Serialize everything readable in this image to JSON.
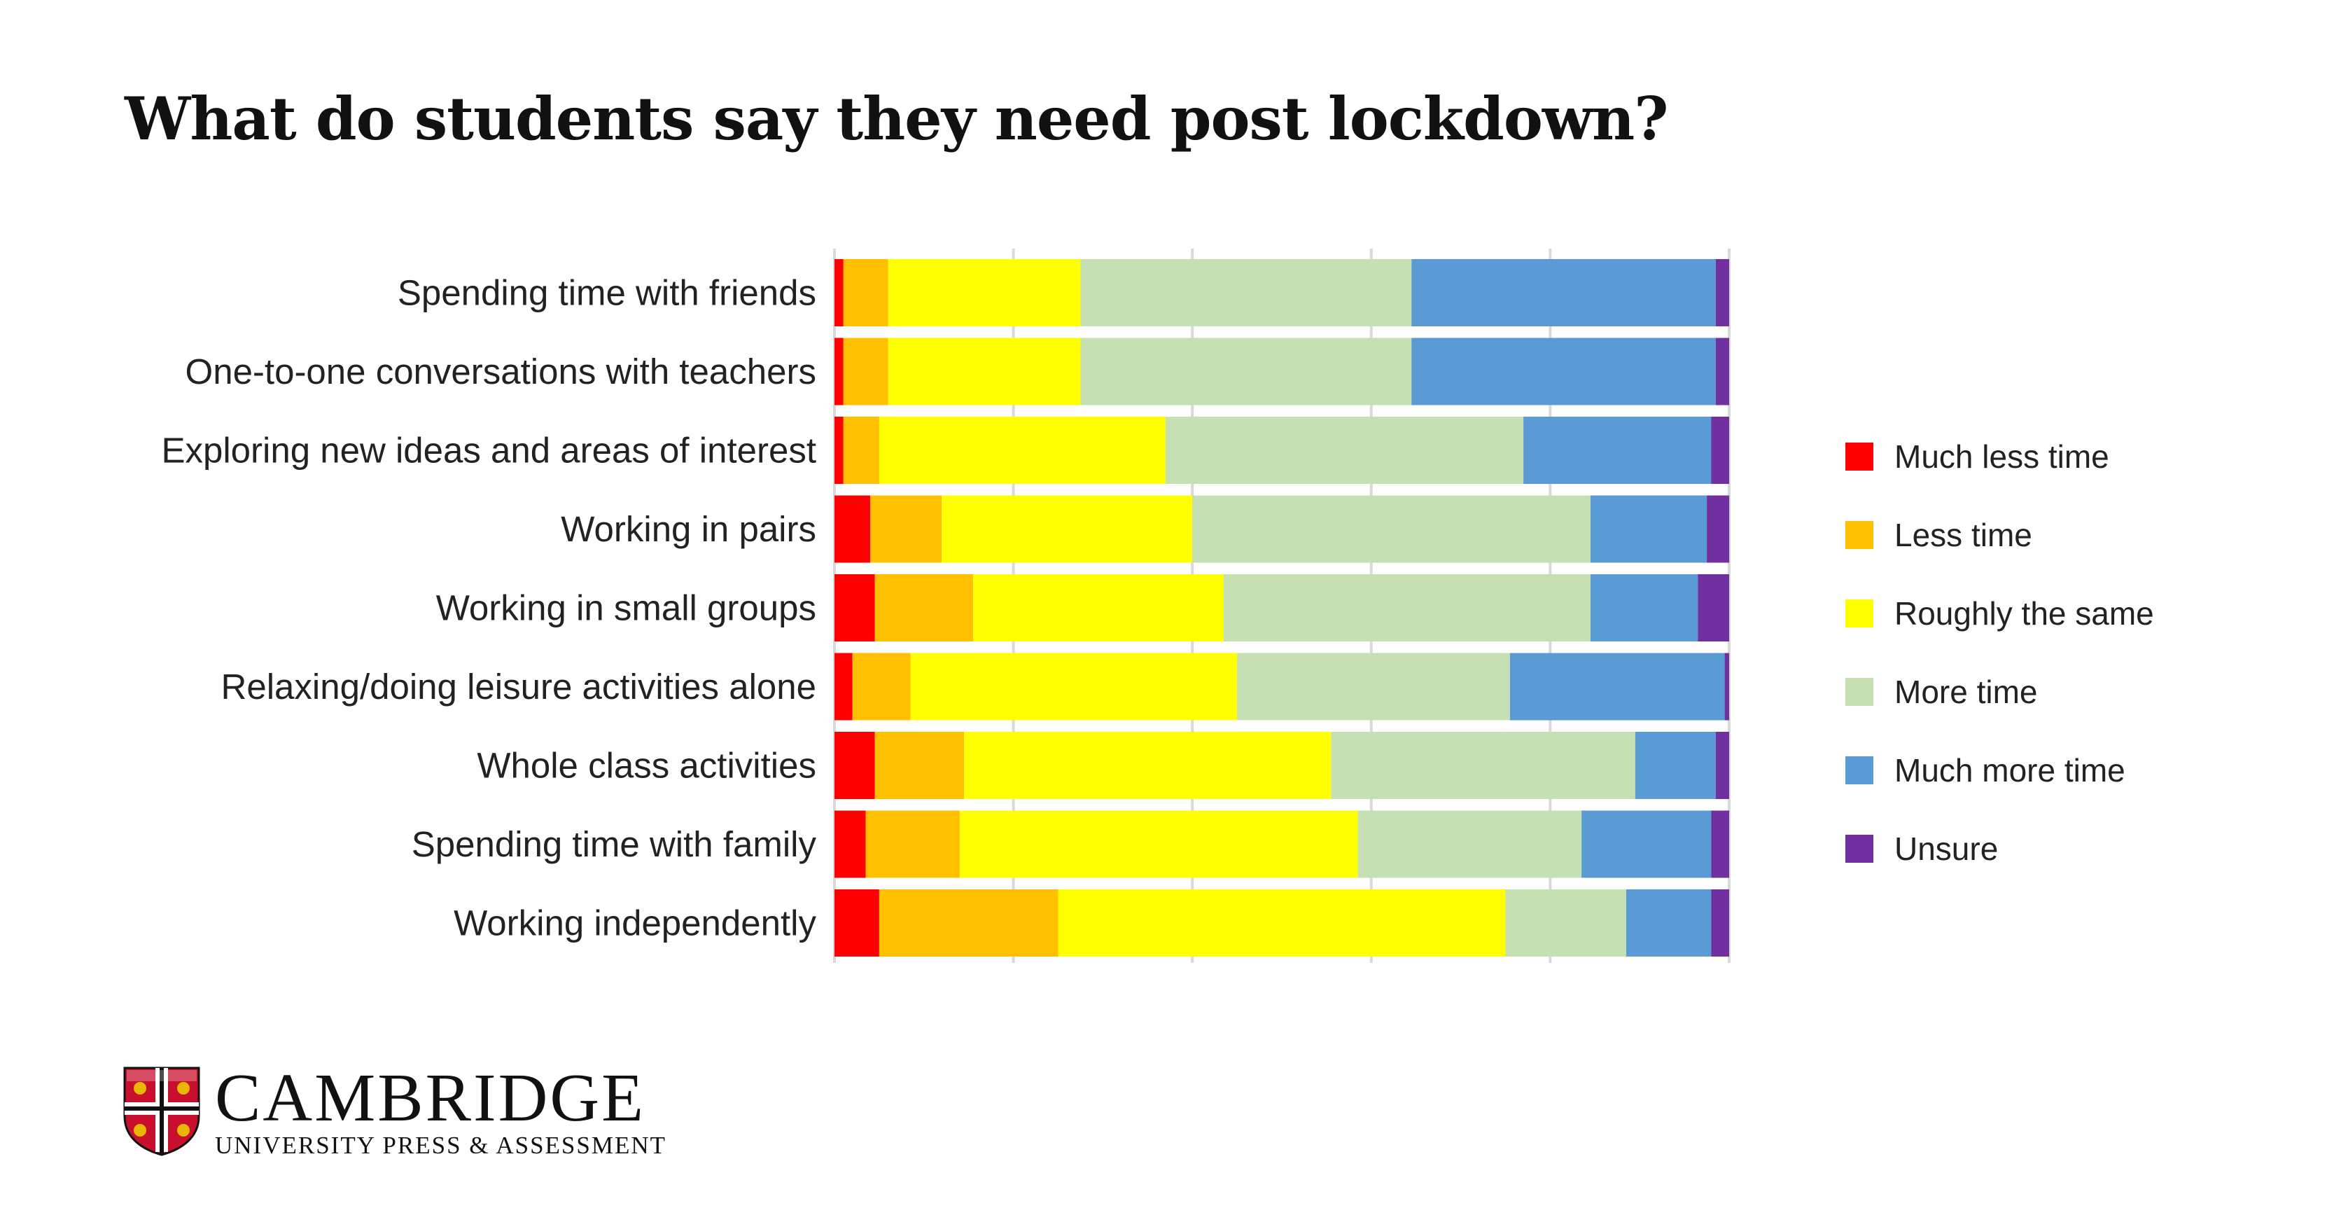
{
  "title": "What do students say they need post lockdown?",
  "chart_data": {
    "type": "bar",
    "orientation": "horizontal",
    "stacked": "percent",
    "title": "What do students say they need post lockdown?",
    "xlabel": "",
    "ylabel": "",
    "xlim": [
      0,
      100
    ],
    "grid": true,
    "legend_position": "right",
    "categories": [
      "Spending time with friends",
      "One-to-one conversations with teachers",
      "Exploring new ideas and areas of interest",
      "Working in pairs",
      "Working in small groups",
      "Relaxing/doing leisure activities alone",
      "Whole class activities",
      "Spending time with family",
      "Working independently"
    ],
    "series": [
      {
        "name": "Much less time",
        "color": "#ff0000",
        "values": [
          1,
          1,
          1,
          4,
          4.5,
          2,
          4.5,
          3.5,
          5
        ]
      },
      {
        "name": "Less time",
        "color": "#ffc000",
        "values": [
          5,
          5,
          4,
          8,
          11,
          6.5,
          10,
          10.5,
          20
        ]
      },
      {
        "name": "Roughly the same",
        "color": "#ffff00",
        "values": [
          21.5,
          21.5,
          32,
          28,
          28,
          36.5,
          41,
          44.5,
          50
        ]
      },
      {
        "name": "More time",
        "color": "#c6e0b4",
        "values": [
          37,
          37,
          40,
          44.5,
          41,
          30.5,
          34,
          25,
          13.5
        ]
      },
      {
        "name": "Much more time",
        "color": "#5b9bd5",
        "values": [
          34,
          34,
          21,
          13,
          12,
          24,
          9,
          14.5,
          9.5
        ]
      },
      {
        "name": "Unsure",
        "color": "#7030a0",
        "values": [
          1.5,
          1.5,
          2,
          2.5,
          3.5,
          0.5,
          1.5,
          2,
          2
        ]
      }
    ]
  },
  "logo": {
    "name": "CAMBRIDGE",
    "subtitle": "UNIVERSITY PRESS & ASSESSMENT"
  }
}
